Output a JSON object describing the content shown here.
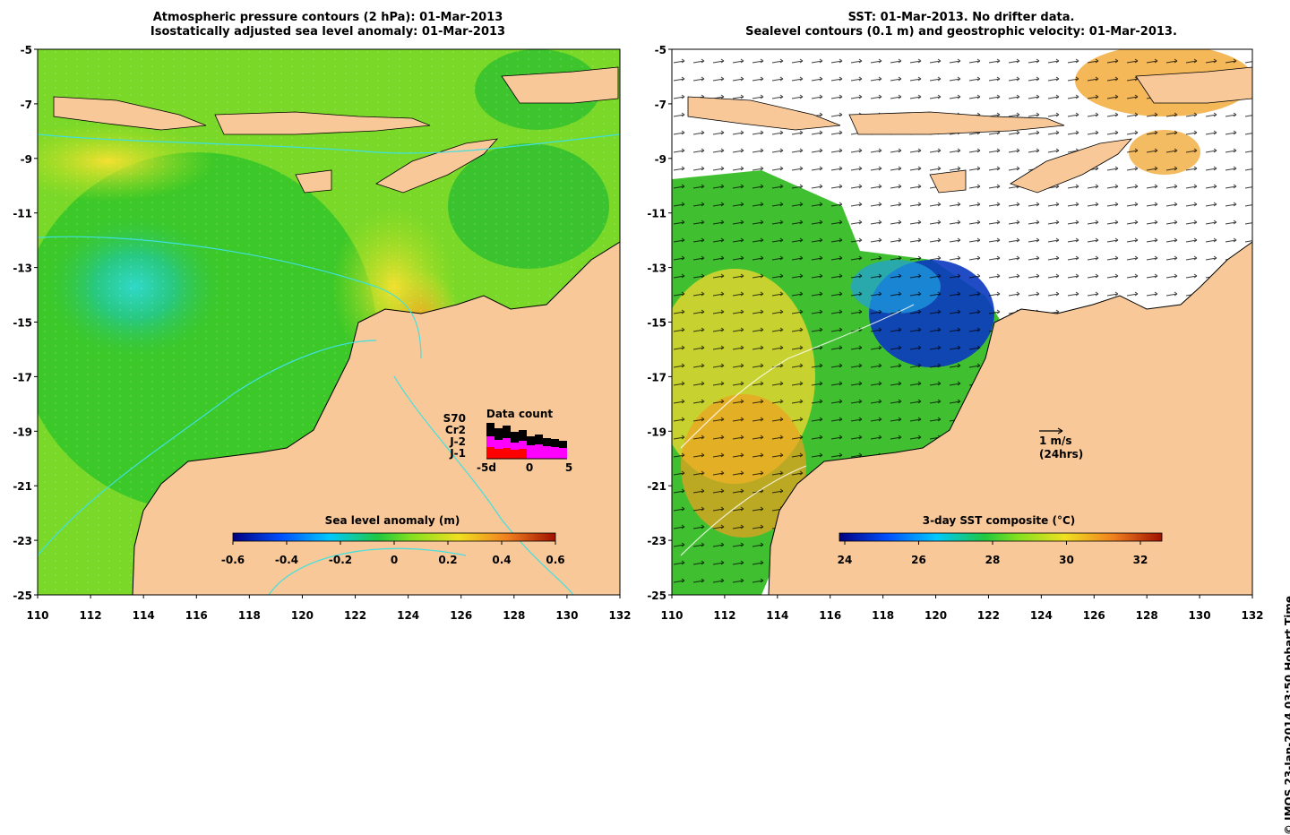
{
  "left": {
    "title_line1": "Atmospheric pressure contours (2 hPa): 01-Mar-2013",
    "title_line2": "Isostatically adjusted sea level anomaly: 01-Mar-2013",
    "colorbar": {
      "label": "Sea level anomaly (m)",
      "ticks": [
        "-0.6",
        "-0.4",
        "-0.2",
        "0",
        "0.2",
        "0.4",
        "0.6"
      ]
    },
    "datacount": {
      "title": "Data count",
      "satellites": [
        "S70",
        "Cr2",
        "J-2",
        "J-1"
      ],
      "sat_colors": [
        "#000000",
        "#000000",
        "#ff00ff",
        "#ff0000"
      ],
      "axis_ticks": [
        "-5d",
        "0",
        "5"
      ]
    }
  },
  "right": {
    "title_line1": "SST: 01-Mar-2013. No drifter data.",
    "title_line2": "Sealevel contours (0.1 m) and geostrophic velocity: 01-Mar-2013.",
    "colorbar": {
      "label": "3-day SST composite (°C)",
      "ticks": [
        "24",
        "26",
        "28",
        "30",
        "32"
      ]
    },
    "scale_arrow_label1": "1 m/s",
    "scale_arrow_label2": "(24hrs)"
  },
  "axes": {
    "lon_ticks": [
      "110",
      "112",
      "114",
      "116",
      "118",
      "120",
      "122",
      "124",
      "126",
      "128",
      "130",
      "132"
    ],
    "lat_ticks": [
      "-5",
      "-7",
      "-9",
      "-11",
      "-13",
      "-15",
      "-17",
      "-19",
      "-21",
      "-23",
      "-25"
    ]
  },
  "credit": "© IMOS 23-Jan-2014 03:50 Hobart Time",
  "colors": {
    "land": "#f8c898",
    "ocean_green": "#3cc820",
    "coast_contour": "#40e0e0",
    "sst_blue": "#0a38c0",
    "sst_orange": "#f0a020"
  }
}
